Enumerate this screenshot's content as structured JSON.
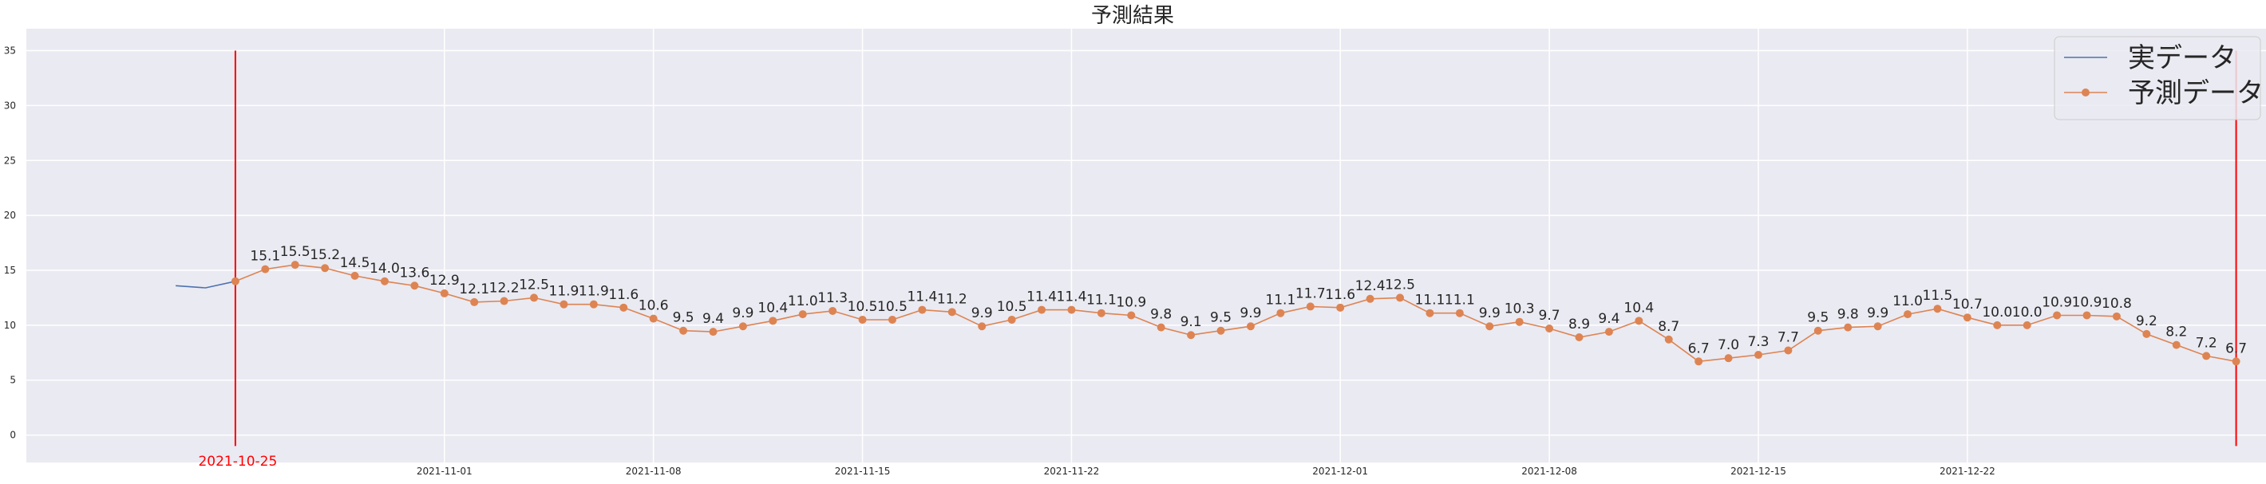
{
  "chart_data": {
    "type": "line",
    "title": "予測結果",
    "xlabel": "",
    "ylabel": "",
    "ylim": [
      -2.5,
      37
    ],
    "xlim": [
      "2021-10-18",
      "2022-01-01"
    ],
    "y_ticks": [
      0,
      5,
      10,
      15,
      20,
      25,
      30,
      35
    ],
    "x_ticks": [
      "2021-11-01",
      "2021-11-08",
      "2021-11-15",
      "2021-11-22",
      "2021-12-01",
      "2021-12-08",
      "2021-12-15",
      "2021-12-22"
    ],
    "grid": true,
    "legend_position": "top-right",
    "colors": {
      "actual": "#4c72b0",
      "predicted": "#dd8452",
      "marker_line": "#ff0000",
      "plot_background": "#eaeaf2",
      "grid": "#ffffff"
    },
    "vertical_markers": [
      {
        "x": "2021-10-25",
        "label": "2021-10-25",
        "y_range": [
          -1,
          35
        ]
      },
      {
        "x": "2021-12-31",
        "label": "",
        "y_range": [
          -1,
          35
        ]
      }
    ],
    "series": [
      {
        "name": "実データ",
        "style": "line",
        "x": [
          "2021-10-23",
          "2021-10-24",
          "2021-10-25"
        ],
        "values": [
          13.6,
          13.4,
          14.0
        ]
      },
      {
        "name": "予測データ",
        "style": "line-marker",
        "show_labels": true,
        "x": [
          "2021-10-25",
          "2021-10-26",
          "2021-10-27",
          "2021-10-28",
          "2021-10-29",
          "2021-10-30",
          "2021-10-31",
          "2021-11-01",
          "2021-11-02",
          "2021-11-03",
          "2021-11-04",
          "2021-11-05",
          "2021-11-06",
          "2021-11-07",
          "2021-11-08",
          "2021-11-09",
          "2021-11-10",
          "2021-11-11",
          "2021-11-12",
          "2021-11-13",
          "2021-11-14",
          "2021-11-15",
          "2021-11-16",
          "2021-11-17",
          "2021-11-18",
          "2021-11-19",
          "2021-11-20",
          "2021-11-21",
          "2021-11-22",
          "2021-11-23",
          "2021-11-24",
          "2021-11-25",
          "2021-11-26",
          "2021-11-27",
          "2021-11-28",
          "2021-11-29",
          "2021-11-30",
          "2021-12-01",
          "2021-12-02",
          "2021-12-03",
          "2021-12-04",
          "2021-12-05",
          "2021-12-06",
          "2021-12-07",
          "2021-12-08",
          "2021-12-09",
          "2021-12-10",
          "2021-12-11",
          "2021-12-12",
          "2021-12-13",
          "2021-12-14",
          "2021-12-15",
          "2021-12-16",
          "2021-12-17",
          "2021-12-18",
          "2021-12-19",
          "2021-12-20",
          "2021-12-21",
          "2021-12-22",
          "2021-12-23",
          "2021-12-24",
          "2021-12-25",
          "2021-12-26",
          "2021-12-27",
          "2021-12-28",
          "2021-12-29",
          "2021-12-30",
          "2021-12-31"
        ],
        "values": [
          14.0,
          15.1,
          15.5,
          15.2,
          14.5,
          14.0,
          13.6,
          12.9,
          12.1,
          12.2,
          12.5,
          11.9,
          11.9,
          11.6,
          10.6,
          9.5,
          9.4,
          9.9,
          10.4,
          11.0,
          11.3,
          10.5,
          10.5,
          11.4,
          11.2,
          9.9,
          10.5,
          11.4,
          11.4,
          11.1,
          10.9,
          9.8,
          9.1,
          9.5,
          9.9,
          11.1,
          11.7,
          11.6,
          12.4,
          12.5,
          11.1,
          11.1,
          9.9,
          10.3,
          9.7,
          8.9,
          9.4,
          10.4,
          8.7,
          6.7,
          7.0,
          7.3,
          7.7,
          9.5,
          9.8,
          9.9,
          11.0,
          11.5,
          10.7,
          10.0,
          10.0,
          10.9,
          10.9,
          10.8,
          9.2,
          8.2,
          7.2,
          6.7
        ],
        "labels": [
          "",
          "15.1",
          "15.5",
          "15.2",
          "14.5",
          "14.0",
          "13.6",
          "12.9",
          "12.1",
          "12.2",
          "12.5",
          "11.9",
          "11.9",
          "11.6",
          "10.6",
          "9.5",
          "9.4",
          "9.9",
          "10.4",
          "11.0",
          "11.3",
          "10.5",
          "10.5",
          "11.4",
          "11.2",
          "9.9",
          "10.5",
          "11.4",
          "11.4",
          "11.1",
          "10.9",
          "9.8",
          "9.1",
          "9.5",
          "9.9",
          "11.1",
          "11.7",
          "11.6",
          "12.4",
          "12.5",
          "11.1",
          "11.1",
          "9.9",
          "10.3",
          "9.7",
          "8.9",
          "9.4",
          "10.4",
          "8.7",
          "6.7",
          "7.0",
          "7.3",
          "7.7",
          "9.5",
          "9.8",
          "9.9",
          "11.0",
          "11.5",
          "10.7",
          "10.0",
          "10.0",
          "10.9",
          "10.9",
          "10.8",
          "9.2",
          "8.2",
          "7.2",
          "6.7"
        ]
      }
    ]
  }
}
